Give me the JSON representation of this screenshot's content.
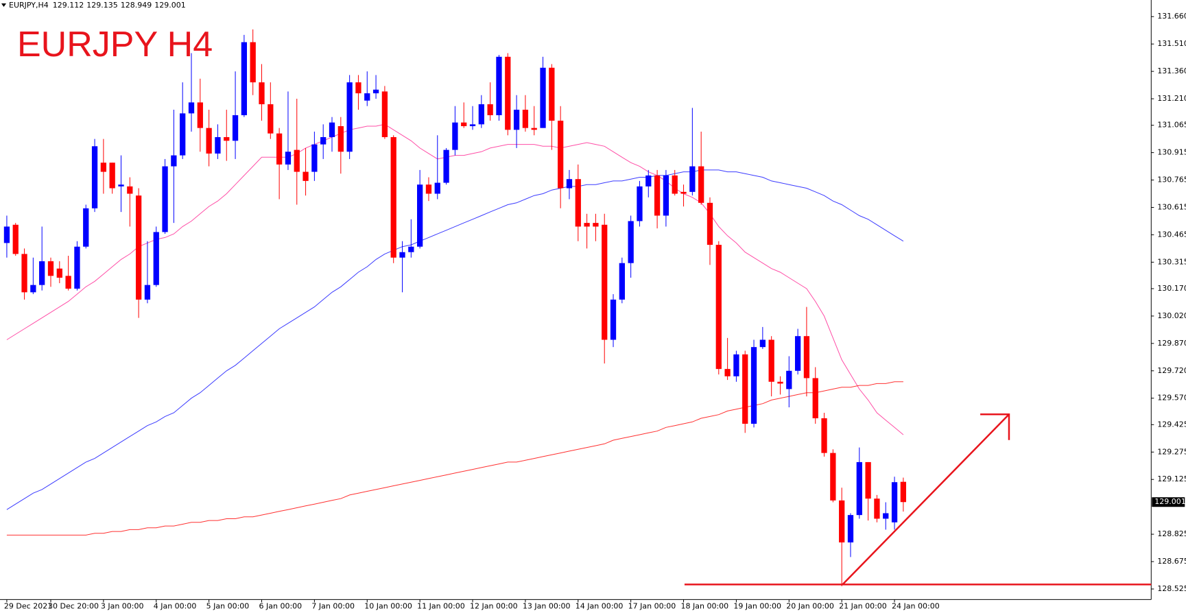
{
  "chart_data": {
    "type": "candlestick",
    "title": "EURJPY H4",
    "symbol": "EURJPY,H4",
    "up_color": "#0000ff",
    "down_color": "#ff0000",
    "annotation_color": "#e8141c",
    "categories": [
      "29 Dec 2021",
      null,
      null,
      null,
      null,
      "30 Dec 20:00",
      null,
      null,
      null,
      null,
      null,
      "3 Jan 00:00",
      null,
      null,
      null,
      null,
      null,
      "4 Jan 00:00",
      null,
      null,
      null,
      null,
      null,
      "5 Jan 00:00",
      null,
      null,
      null,
      null,
      null,
      "6 Jan 00:00",
      null,
      null,
      null,
      null,
      null,
      "7 Jan 00:00",
      null,
      null,
      null,
      null,
      null,
      "10 Jan 00:00",
      null,
      null,
      null,
      null,
      null,
      "11 Jan 00:00",
      null,
      null,
      null,
      null,
      null,
      "12 Jan 00:00",
      null,
      null,
      null,
      null,
      null,
      "13 Jan 00:00",
      null,
      null,
      null,
      null,
      null,
      "14 Jan 00:00",
      null,
      null,
      null,
      null,
      null,
      "17 Jan 00:00",
      null,
      null,
      null,
      null,
      null,
      "18 Jan 00:00",
      null,
      null,
      null,
      null,
      null,
      "19 Jan 00:00",
      null,
      null,
      null,
      null,
      null,
      "20 Jan 00:00",
      null,
      null,
      null,
      null,
      null,
      "21 Jan 00:00",
      null,
      null,
      null,
      null,
      null,
      "24 Jan 00:00",
      null
    ],
    "open": [
      130.42,
      130.52,
      130.36,
      130.15,
      130.19,
      130.32,
      130.28,
      130.24,
      130.17,
      130.4,
      130.61,
      130.86,
      130.86,
      130.73,
      130.73,
      130.68,
      130.11,
      130.19,
      130.48,
      130.84,
      130.9,
      131.13,
      131.19,
      131.05,
      130.91,
      131.0,
      130.98,
      131.12,
      131.52,
      131.3,
      131.18,
      131.02,
      130.85,
      130.93,
      130.81,
      130.81,
      130.96,
      131.0,
      131.06,
      130.92,
      131.3,
      131.2,
      131.24,
      131.25,
      131.0,
      130.34,
      130.37,
      130.4,
      130.74,
      130.69,
      130.75,
      130.93,
      131.08,
      131.06,
      131.07,
      131.18,
      131.12,
      131.44,
      131.04,
      131.15,
      131.05,
      131.05,
      131.38,
      131.09,
      130.72,
      130.77,
      130.53,
      130.53,
      130.52,
      129.89,
      130.11,
      130.31,
      130.54,
      130.73,
      130.79,
      130.57,
      130.79,
      130.7,
      130.7,
      130.84,
      130.64,
      130.41,
      129.73,
      129.69,
      129.81,
      129.43,
      129.85,
      129.89,
      129.66,
      129.62,
      129.72,
      129.91,
      129.68,
      129.46,
      129.27,
      129.01,
      128.78,
      128.93,
      129.22,
      129.02,
      128.91,
      128.89,
      129.112
    ],
    "high": [
      130.57,
      130.53,
      130.39,
      130.34,
      130.51,
      130.34,
      130.32,
      130.35,
      130.43,
      130.63,
      130.99,
      130.99,
      130.86,
      130.9,
      130.78,
      130.72,
      130.43,
      130.51,
      130.88,
      131.15,
      131.3,
      131.46,
      131.32,
      131.15,
      131.07,
      131.15,
      131.36,
      131.56,
      131.59,
      131.4,
      131.3,
      131.05,
      131.25,
      131.21,
      130.94,
      131.03,
      131.07,
      131.11,
      131.11,
      131.34,
      131.34,
      131.36,
      131.34,
      131.28,
      131.01,
      130.43,
      130.55,
      130.82,
      130.78,
      131.01,
      130.94,
      131.17,
      131.19,
      131.17,
      131.23,
      131.3,
      131.45,
      131.46,
      131.23,
      131.23,
      131.17,
      131.44,
      131.4,
      131.17,
      130.82,
      130.85,
      130.58,
      130.58,
      130.58,
      130.14,
      130.34,
      130.57,
      130.76,
      130.82,
      130.82,
      130.82,
      130.82,
      130.74,
      131.16,
      131.03,
      130.67,
      130.43,
      129.9,
      129.83,
      129.83,
      129.89,
      129.96,
      129.91,
      129.69,
      129.8,
      129.95,
      130.07,
      129.74,
      129.49,
      129.29,
      129.08,
      128.94,
      129.3,
      129.22,
      129.04,
      129.0,
      129.14,
      129.135
    ],
    "low": [
      130.34,
      130.35,
      130.11,
      130.14,
      130.16,
      130.18,
      130.2,
      130.16,
      130.16,
      130.39,
      130.59,
      130.69,
      130.69,
      130.59,
      130.51,
      130.01,
      130.09,
      130.18,
      130.47,
      130.53,
      130.88,
      131.03,
      130.92,
      130.84,
      130.88,
      130.87,
      130.88,
      131.11,
      131.23,
      131.09,
      130.99,
      130.66,
      130.82,
      130.63,
      130.68,
      130.76,
      130.88,
      130.92,
      130.8,
      130.88,
      131.15,
      131.17,
      131.21,
      130.99,
      130.31,
      130.15,
      130.34,
      130.39,
      130.65,
      130.66,
      130.74,
      130.9,
      131.05,
      131.04,
      131.05,
      131.09,
      131.09,
      131.01,
      130.94,
      131.03,
      131.01,
      131.05,
      130.93,
      130.61,
      130.66,
      130.43,
      130.39,
      130.43,
      129.76,
      129.85,
      130.09,
      130.23,
      130.51,
      130.67,
      130.5,
      130.51,
      130.68,
      130.62,
      130.68,
      130.63,
      130.3,
      129.7,
      129.67,
      129.66,
      129.38,
      129.41,
      129.84,
      129.58,
      129.59,
      129.52,
      129.7,
      129.58,
      129.43,
      129.25,
      129.0,
      128.54,
      128.7,
      128.91,
      128.9,
      128.89,
      128.85,
      128.85,
      128.949
    ],
    "close": [
      130.51,
      130.36,
      130.15,
      130.19,
      130.32,
      130.24,
      130.23,
      130.17,
      130.4,
      130.61,
      130.95,
      130.81,
      130.72,
      130.74,
      130.69,
      130.11,
      130.19,
      130.48,
      130.84,
      130.9,
      131.13,
      131.19,
      131.05,
      130.91,
      131.0,
      130.98,
      131.12,
      131.52,
      131.3,
      131.18,
      131.02,
      130.85,
      130.92,
      130.81,
      130.76,
      130.96,
      131.0,
      131.08,
      130.92,
      131.3,
      131.24,
      131.24,
      131.26,
      131.0,
      130.34,
      130.37,
      130.4,
      130.74,
      130.69,
      130.75,
      130.93,
      131.08,
      131.06,
      131.07,
      131.18,
      131.12,
      131.44,
      131.04,
      131.15,
      131.05,
      131.04,
      131.38,
      131.09,
      130.72,
      130.77,
      130.51,
      130.51,
      130.51,
      129.89,
      130.11,
      130.31,
      130.54,
      130.73,
      130.79,
      130.57,
      130.79,
      130.69,
      130.69,
      130.84,
      130.64,
      130.41,
      129.73,
      129.69,
      129.81,
      129.43,
      129.85,
      129.89,
      129.66,
      129.65,
      129.72,
      129.91,
      129.68,
      129.46,
      129.27,
      129.01,
      128.78,
      128.93,
      129.22,
      129.02,
      128.91,
      128.94,
      129.11,
      129.001
    ],
    "lines": [
      {
        "color": "#ff4da6",
        "values": [
          129.89,
          129.92,
          129.95,
          129.98,
          130.01,
          130.04,
          130.07,
          130.1,
          130.14,
          130.18,
          130.21,
          130.25,
          130.29,
          130.33,
          130.36,
          130.4,
          130.42,
          130.44,
          130.45,
          130.47,
          130.51,
          130.54,
          130.58,
          130.62,
          130.65,
          130.69,
          130.74,
          130.79,
          130.84,
          130.89,
          130.89,
          130.89,
          130.89,
          130.91,
          130.94,
          130.96,
          130.98,
          131.0,
          131.02,
          131.04,
          131.05,
          131.06,
          131.06,
          131.07,
          131.04,
          131.01,
          130.98,
          130.94,
          130.91,
          130.88,
          130.89,
          130.9,
          130.9,
          130.91,
          130.92,
          130.94,
          130.95,
          130.96,
          130.96,
          130.96,
          130.96,
          130.95,
          130.95,
          130.94,
          130.95,
          130.96,
          130.97,
          130.96,
          130.95,
          130.92,
          130.89,
          130.86,
          130.84,
          130.81,
          130.79,
          130.76,
          130.72,
          130.69,
          130.67,
          130.64,
          130.58,
          130.51,
          130.46,
          130.42,
          130.37,
          130.34,
          130.31,
          130.28,
          130.26,
          130.23,
          130.2,
          130.17,
          130.1,
          130.02,
          129.9,
          129.78,
          129.7,
          129.62,
          129.56,
          129.49,
          129.45,
          129.41,
          129.37
        ]
      },
      {
        "color": "#3a3aff",
        "values": [
          128.96,
          128.99,
          129.02,
          129.05,
          129.07,
          129.1,
          129.13,
          129.16,
          129.19,
          129.22,
          129.24,
          129.27,
          129.3,
          129.33,
          129.36,
          129.39,
          129.42,
          129.44,
          129.47,
          129.49,
          129.53,
          129.57,
          129.6,
          129.64,
          129.68,
          129.72,
          129.75,
          129.79,
          129.83,
          129.87,
          129.91,
          129.95,
          129.98,
          130.01,
          130.04,
          130.07,
          130.11,
          130.15,
          130.18,
          130.22,
          130.26,
          130.29,
          130.33,
          130.36,
          130.38,
          130.4,
          130.41,
          130.43,
          130.45,
          130.47,
          130.49,
          130.51,
          130.53,
          130.55,
          130.57,
          130.59,
          130.61,
          130.63,
          130.64,
          130.66,
          130.68,
          130.69,
          130.71,
          130.72,
          130.73,
          130.73,
          130.74,
          130.74,
          130.75,
          130.76,
          130.76,
          130.77,
          130.78,
          130.78,
          130.79,
          130.79,
          130.8,
          130.81,
          130.81,
          130.82,
          130.82,
          130.82,
          130.81,
          130.81,
          130.8,
          130.79,
          130.78,
          130.76,
          130.75,
          130.74,
          130.73,
          130.72,
          130.7,
          130.68,
          130.65,
          130.63,
          130.6,
          130.57,
          130.55,
          130.52,
          130.49,
          130.46,
          130.43
        ]
      },
      {
        "color": "#ff3030",
        "values": [
          128.82,
          128.82,
          128.82,
          128.82,
          128.82,
          128.82,
          128.82,
          128.82,
          128.82,
          128.82,
          128.83,
          128.83,
          128.84,
          128.84,
          128.85,
          128.85,
          128.86,
          128.86,
          128.87,
          128.87,
          128.88,
          128.89,
          128.89,
          128.9,
          128.9,
          128.91,
          128.91,
          128.92,
          128.92,
          128.93,
          128.94,
          128.95,
          128.96,
          128.97,
          128.98,
          128.99,
          129.0,
          129.01,
          129.02,
          129.04,
          129.05,
          129.06,
          129.07,
          129.08,
          129.09,
          129.1,
          129.11,
          129.12,
          129.13,
          129.14,
          129.15,
          129.16,
          129.17,
          129.18,
          129.19,
          129.2,
          129.21,
          129.22,
          129.22,
          129.23,
          129.24,
          129.25,
          129.26,
          129.27,
          129.28,
          129.29,
          129.3,
          129.31,
          129.32,
          129.34,
          129.35,
          129.36,
          129.37,
          129.38,
          129.39,
          129.41,
          129.42,
          129.43,
          129.44,
          129.46,
          129.47,
          129.48,
          129.5,
          129.51,
          129.52,
          129.53,
          129.54,
          129.56,
          129.57,
          129.58,
          129.59,
          129.6,
          129.6,
          129.61,
          129.62,
          129.63,
          129.63,
          129.64,
          129.64,
          129.65,
          129.65,
          129.66,
          129.66
        ]
      }
    ],
    "ylim": [
      128.467,
      131.751
    ],
    "yticks": [
      {
        "value": 131.66,
        "label": "131.660"
      },
      {
        "value": 131.51,
        "label": "131.510"
      },
      {
        "value": 131.36,
        "label": "131.360"
      },
      {
        "value": 131.21,
        "label": "131.210"
      },
      131.065,
      130.915,
      130.765,
      130.615,
      130.465,
      130.315,
      {
        "value": 130.17,
        "label": "130.170"
      },
      {
        "value": 130.02,
        "label": "130.020"
      },
      {
        "value": 129.87,
        "label": "129.870"
      },
      {
        "value": 129.72,
        "label": "129.720"
      },
      {
        "value": 129.57,
        "label": "129.570"
      },
      129.425,
      129.275,
      129.125,
      128.825,
      128.675,
      128.525
    ],
    "grid": false
  }
}
